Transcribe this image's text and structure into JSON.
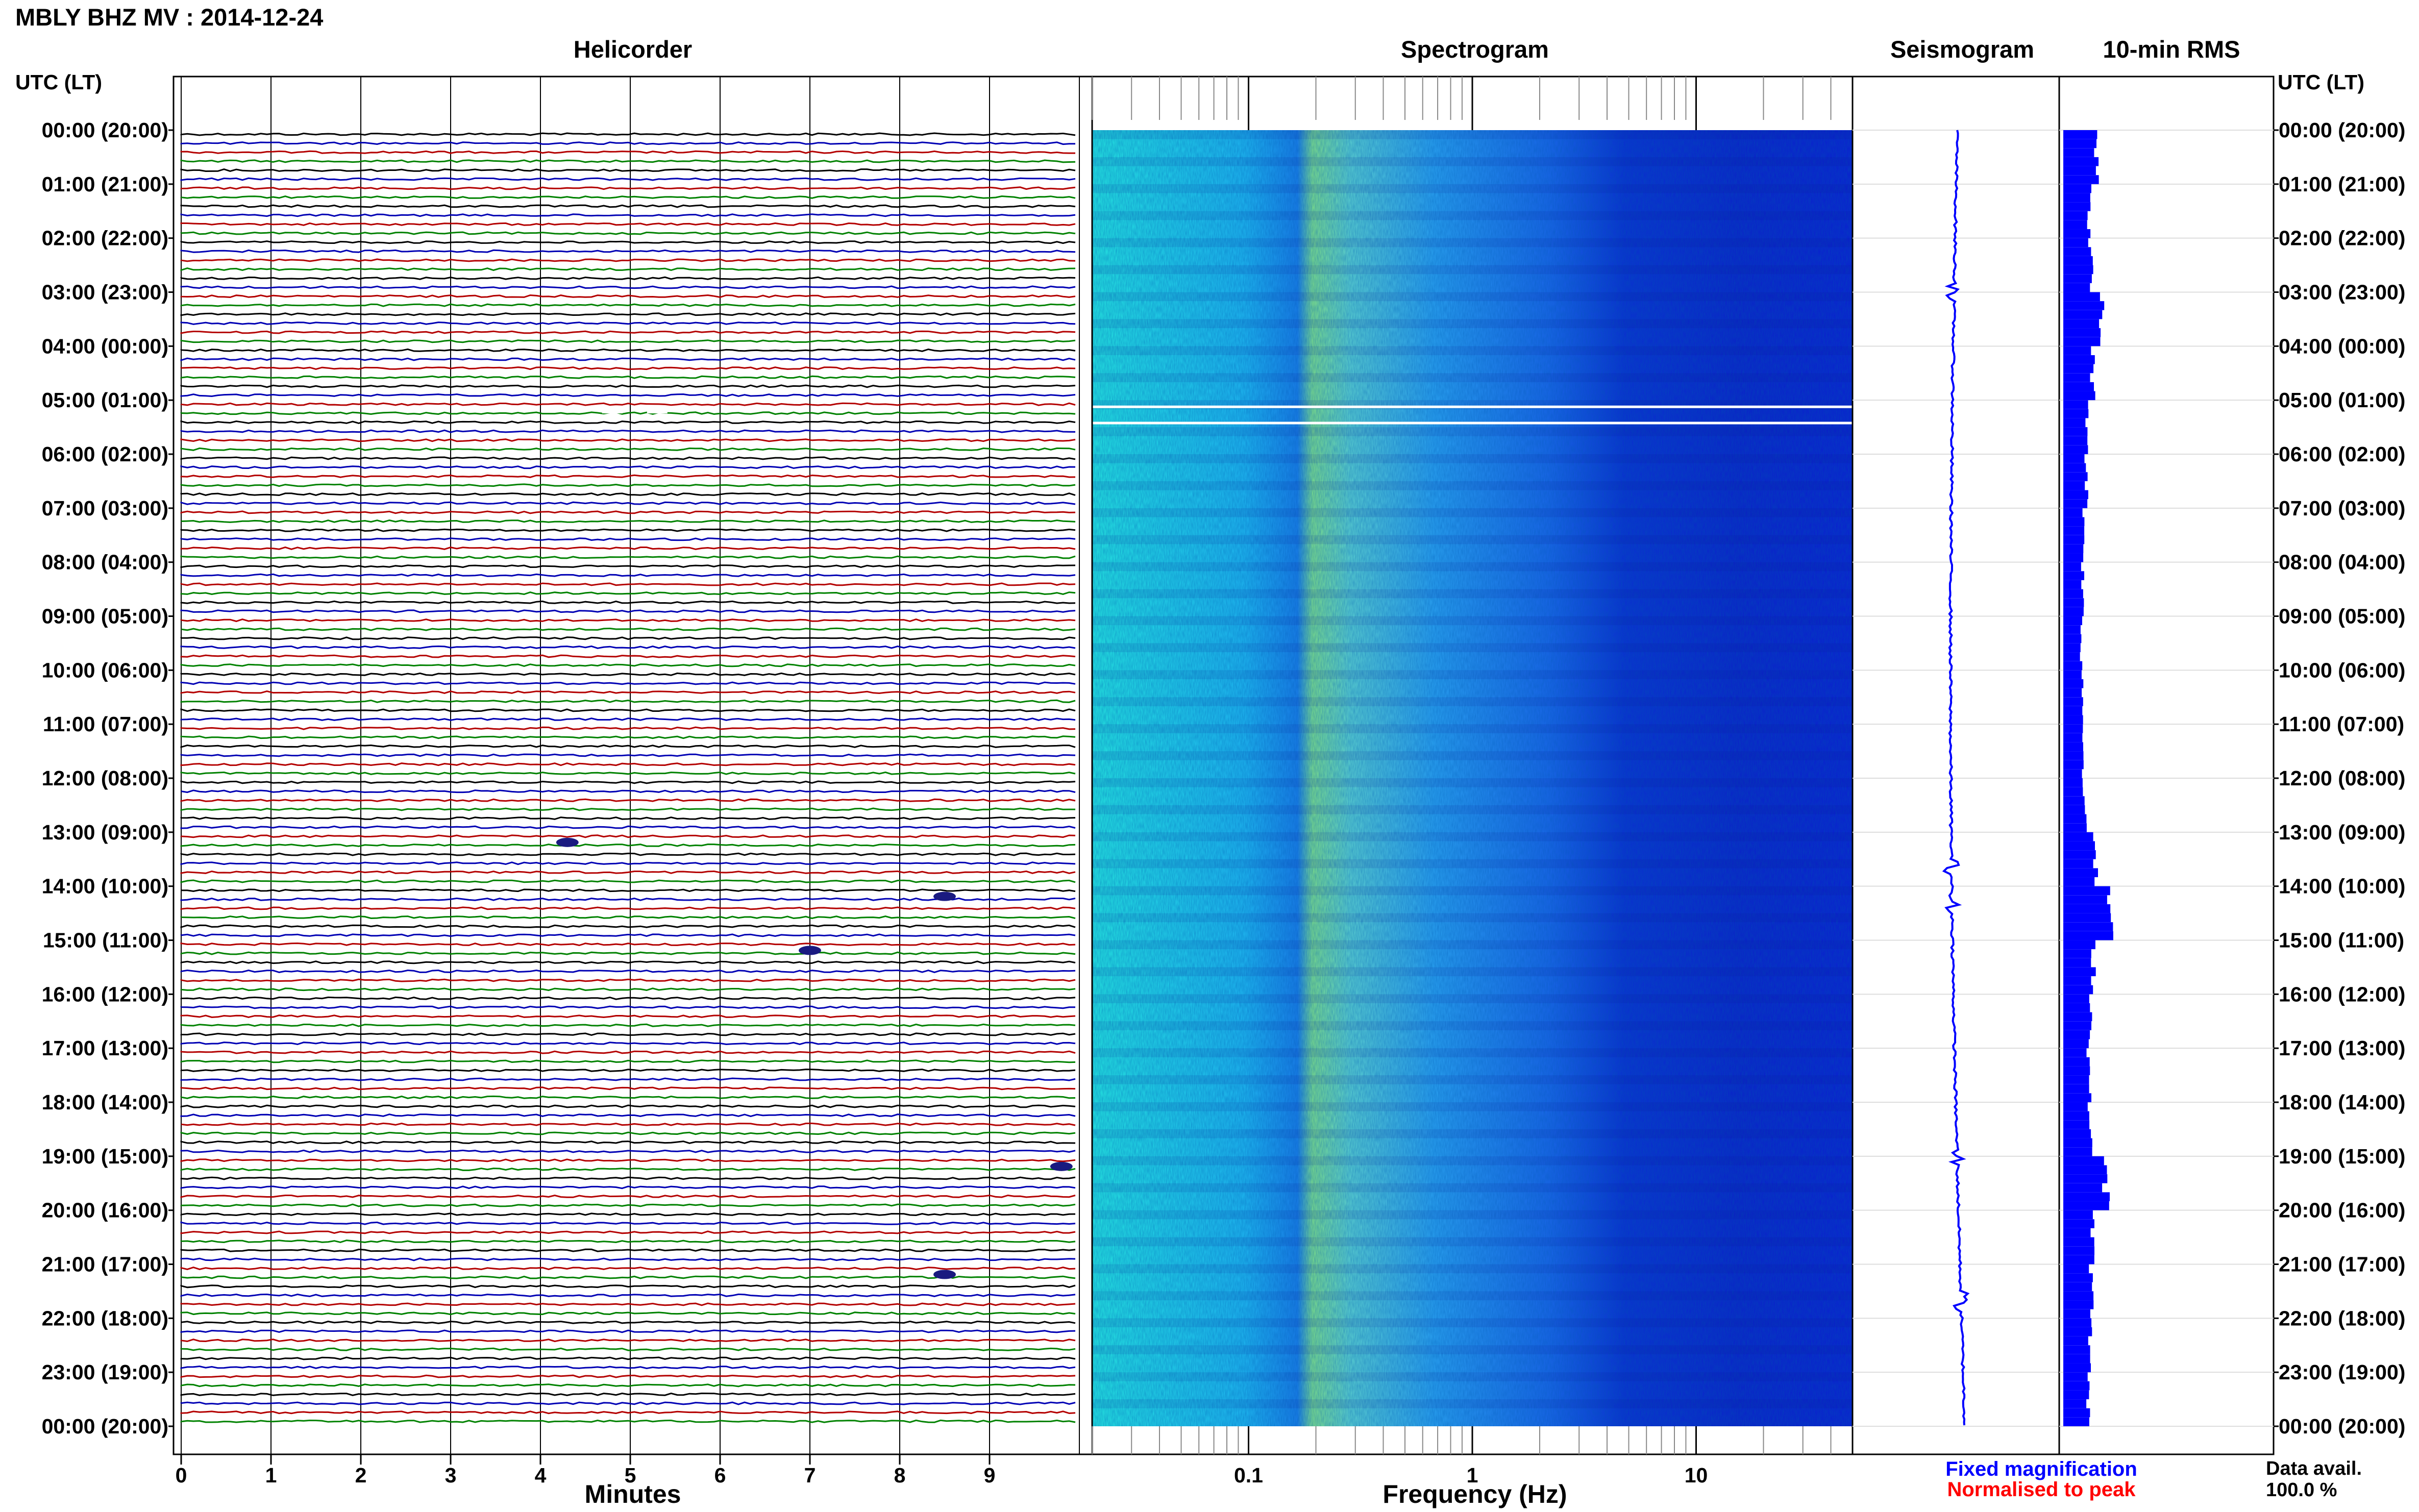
{
  "header": {
    "title": "MBLY BHZ MV : 2014-12-24",
    "panel_titles": {
      "helicorder": "Helicorder",
      "spectrogram": "Spectrogram",
      "seismogram": "Seismogram",
      "rms": "10-min RMS"
    },
    "left_axis_title": "UTC (LT)",
    "right_axis_title": "UTC (LT)"
  },
  "time_labels": [
    "00:00 (20:00)",
    "01:00 (21:00)",
    "02:00 (22:00)",
    "03:00 (23:00)",
    "04:00 (00:00)",
    "05:00 (01:00)",
    "06:00 (02:00)",
    "07:00 (03:00)",
    "08:00 (04:00)",
    "09:00 (05:00)",
    "10:00 (06:00)",
    "11:00 (07:00)",
    "12:00 (08:00)",
    "13:00 (09:00)",
    "14:00 (10:00)",
    "15:00 (11:00)",
    "16:00 (12:00)",
    "17:00 (13:00)",
    "18:00 (14:00)",
    "19:00 (15:00)",
    "20:00 (16:00)",
    "21:00 (17:00)",
    "22:00 (18:00)",
    "23:00 (19:00)",
    "00:00 (20:00)"
  ],
  "footer": {
    "minutes_label": "Minutes",
    "frequency_label": "Frequency (Hz)",
    "legend_fixed": "Fixed magnification",
    "legend_normalised": "Normalised to peak",
    "data_avail_label": "Data avail.",
    "data_avail_value": "100.0 %"
  },
  "colors": {
    "fixed": "#0000ff",
    "normalised": "#ff0000",
    "trace_cycle": [
      "#000000",
      "#0000b4",
      "#b40000",
      "#008200"
    ],
    "spectrogram_low": "#0a1fd0",
    "spectrogram_mid": "#1f9cff",
    "spectrogram_high": "#26e8e0",
    "spectrogram_peak": "#a8f07a"
  },
  "chart_data": [
    {
      "type": "line",
      "name": "helicorder",
      "title": "Helicorder",
      "xlabel": "Minutes",
      "ylabel": "UTC (LT)",
      "xlim": [
        0,
        10
      ],
      "x_ticks": [
        "0",
        "1",
        "2",
        "3",
        "4",
        "5",
        "6",
        "7",
        "8",
        "9"
      ],
      "rows_per_hour": 6,
      "rows": 144,
      "events": [
        {
          "hour": 5,
          "minute": 4.8,
          "note": "data gap"
        },
        {
          "hour": 5,
          "minute": 5.3,
          "note": "data gap"
        },
        {
          "hour": 13,
          "minute": 4.3
        },
        {
          "hour": 14,
          "minute": 8.5
        },
        {
          "hour": 15,
          "minute": 7.0
        },
        {
          "hour": 19,
          "minute": 9.8
        },
        {
          "hour": 21,
          "minute": 8.5
        }
      ]
    },
    {
      "type": "heatmap",
      "name": "spectrogram",
      "title": "Spectrogram",
      "xlabel": "Frequency (Hz)",
      "x_scale": "log",
      "xlim": [
        0.02,
        50
      ],
      "x_ticks": [
        "0.1",
        "1",
        "10"
      ],
      "y_range_hours": [
        0,
        24
      ],
      "peak_band_hz": [
        0.2,
        0.5
      ],
      "gaps_hours": [
        5.1,
        5.4
      ]
    },
    {
      "type": "line",
      "name": "seismogram",
      "title": "Seismogram",
      "y_range_hours": [
        0,
        24
      ],
      "bursts_hours": [
        3.0,
        13.7,
        14.3,
        19.0,
        21.7
      ]
    },
    {
      "type": "bar",
      "name": "rms",
      "title": "10-min RMS",
      "orientation": "horizontal",
      "hours": [
        0,
        1,
        2,
        3,
        4,
        5,
        6,
        7,
        8,
        9,
        10,
        11,
        12,
        13,
        14,
        15,
        16,
        17,
        18,
        19,
        20,
        21,
        22,
        23
      ],
      "values": [
        0.55,
        0.42,
        0.45,
        0.62,
        0.48,
        0.4,
        0.38,
        0.34,
        0.32,
        0.3,
        0.32,
        0.33,
        0.35,
        0.52,
        0.75,
        0.5,
        0.45,
        0.42,
        0.44,
        0.7,
        0.48,
        0.46,
        0.44,
        0.4
      ],
      "xlim": [
        0,
        1
      ]
    }
  ]
}
